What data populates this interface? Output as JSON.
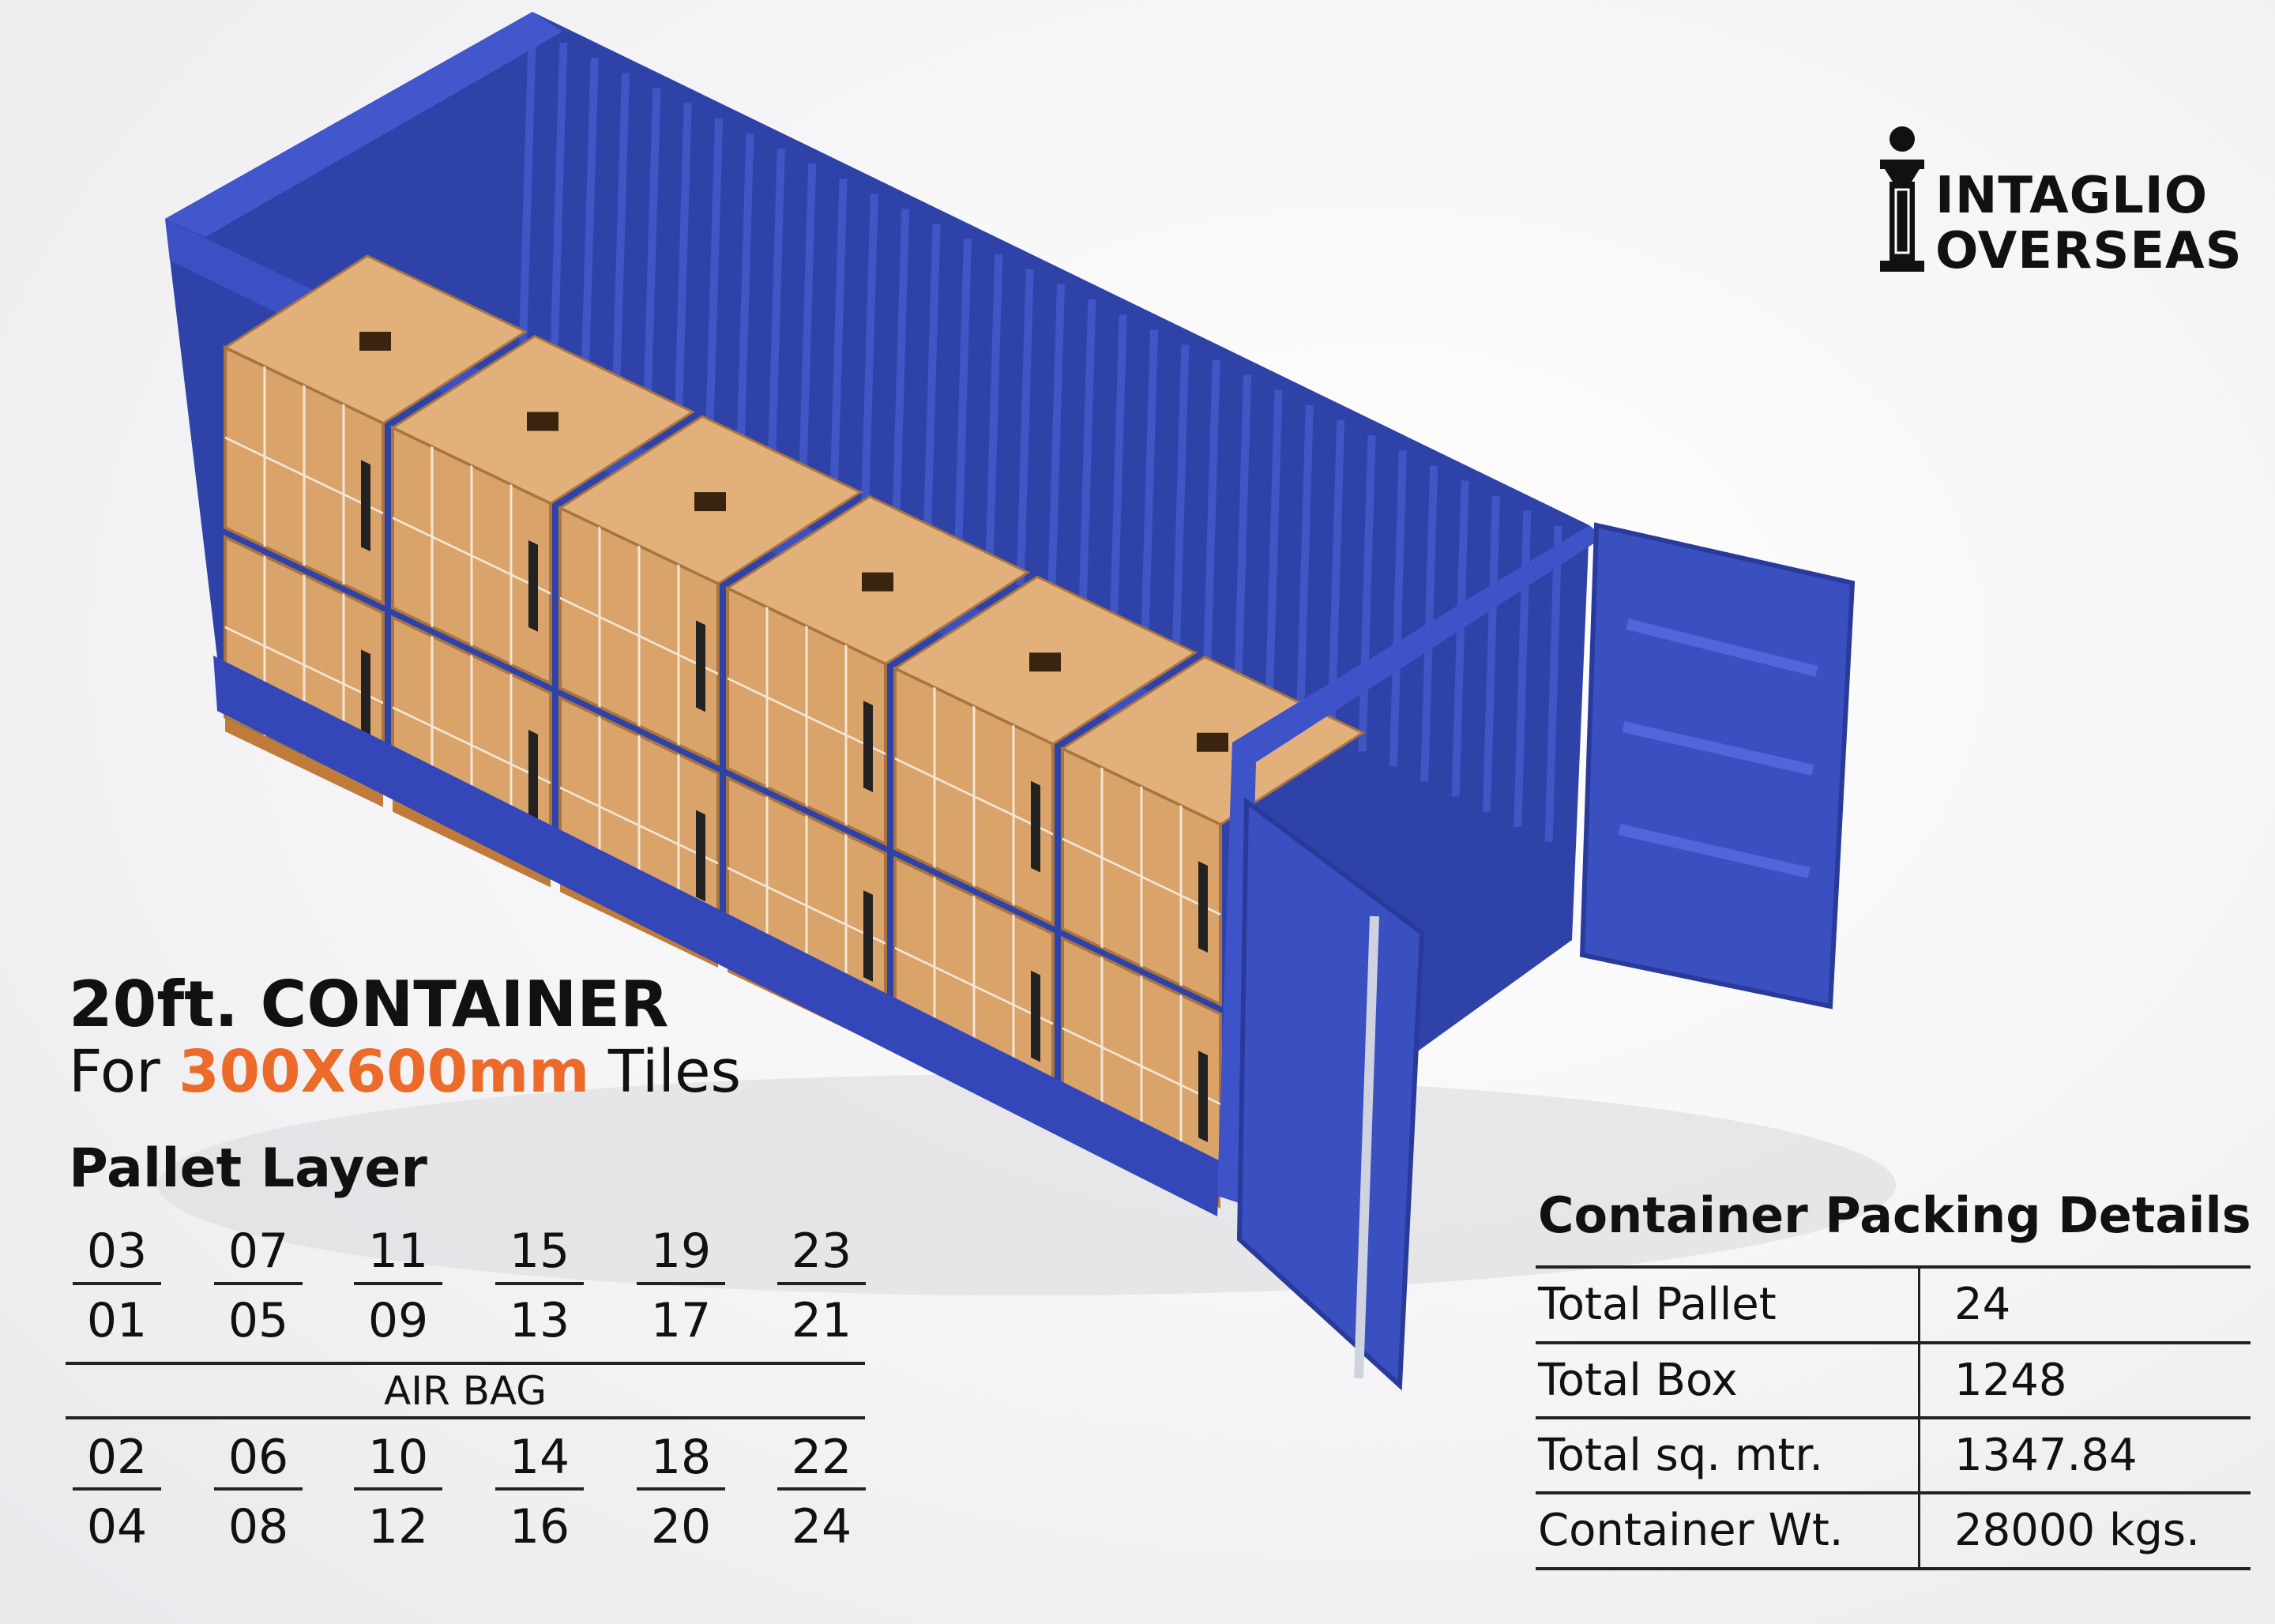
{
  "brand": {
    "name_line1": "INTAGLIO",
    "name_line2": "OVERSEAS"
  },
  "colors": {
    "container_blue": "#3a4fc0",
    "accent_orange": "#ec6a2a",
    "box_brown": "#d9a36a"
  },
  "heading": {
    "title": "20ft. CONTAINER",
    "subtitle_prefix": "For",
    "subtitle_accent": "300X600mm",
    "subtitle_suffix": "Tiles"
  },
  "pallet_layer": {
    "title": "Pallet Layer",
    "upper_top": [
      "03",
      "07",
      "11",
      "15",
      "19",
      "23"
    ],
    "upper_bottom": [
      "01",
      "05",
      "09",
      "13",
      "17",
      "21"
    ],
    "divider_label": "AIR BAG",
    "lower_top": [
      "02",
      "06",
      "10",
      "14",
      "18",
      "22"
    ],
    "lower_bottom": [
      "04",
      "08",
      "12",
      "16",
      "20",
      "24"
    ]
  },
  "packing": {
    "title": "Container Packing Details",
    "rows": [
      {
        "label": "Total Pallet",
        "value": "24"
      },
      {
        "label": "Total Box",
        "value": "1248"
      },
      {
        "label": "Total sq. mtr.",
        "value": "1347.84"
      },
      {
        "label": "Container Wt.",
        "value": "28000 kgs."
      }
    ]
  }
}
